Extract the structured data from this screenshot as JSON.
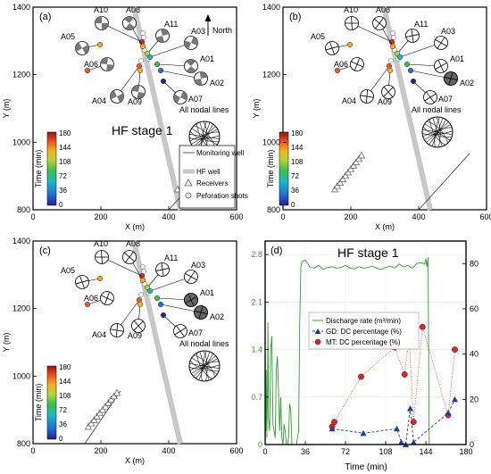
{
  "colors": {
    "hf_well": "#c8c8c8",
    "discharge": "#2ca02c",
    "gd": "#1f3f99",
    "mt": "#d62728",
    "axis": "#000000",
    "grid": "#e6e6e6"
  },
  "colorbar": {
    "label": "Time (min)",
    "ticks": [
      "180",
      "144",
      "108",
      "72",
      "36",
      "0"
    ]
  },
  "map_panels": [
    {
      "id": "a",
      "letter": "(a)",
      "xlabel": "X (m)",
      "ylabel": "Y (m)",
      "xticks": [
        "0",
        "200",
        "400",
        "600"
      ],
      "yticks": [
        "1400",
        "1200",
        "1000",
        "800"
      ],
      "north": "North",
      "stage_label": "HF stage 1",
      "nodal_label": "All nodal lines",
      "legend": [
        "Monitoring well",
        "HF well",
        "Receivers",
        "Peforation shots"
      ],
      "beachball_style": "fm",
      "beachball_labels": [
        "A10",
        "A08",
        "A11",
        "A03",
        "A05",
        "A06",
        "A01",
        "A02",
        "A07",
        "A04",
        "A09"
      ]
    },
    {
      "id": "b",
      "letter": "(b)",
      "xlabel": "X (m)",
      "ylabel": "Y (m)",
      "xticks": [
        "0",
        "200",
        "400",
        "600"
      ],
      "yticks": [
        "1400",
        "1200",
        "1000",
        "800"
      ],
      "nodal_label": "All nodal lines",
      "beachball_style": "gd",
      "beachball_labels": [
        "A10",
        "A08",
        "A11",
        "A03",
        "A05",
        "A06",
        "A01",
        "A02",
        "A07",
        "A04",
        "A09"
      ]
    },
    {
      "id": "c",
      "letter": "(c)",
      "xlabel": "X (m)",
      "ylabel": "Y (m)",
      "xticks": [
        "0",
        "200",
        "400",
        "600"
      ],
      "yticks": [
        "1400",
        "1200",
        "1000",
        "800"
      ],
      "nodal_label": "All nodal lines",
      "beachball_style": "mt",
      "beachball_labels": [
        "A10",
        "A08",
        "A11",
        "A03",
        "A05",
        "A06",
        "A01",
        "A02",
        "A07",
        "A04",
        "A09"
      ]
    }
  ],
  "chart_data": {
    "type": "line",
    "letter": "(d)",
    "title": "HF stage 1",
    "xlabel": "Time (min)",
    "xlim": [
      0,
      180
    ],
    "xticks": [
      "0",
      "36",
      "72",
      "108",
      "144",
      "180"
    ],
    "ylim_left": [
      0,
      3.0
    ],
    "yticks_left": [
      "0",
      "0.7",
      "1.4",
      "2.1",
      "2.8"
    ],
    "ylim_right": [
      0,
      90
    ],
    "yticks_right": [
      "0",
      "20",
      "40",
      "60",
      "80"
    ],
    "legend": [
      "Discharge rate (m³/min)",
      "GD: DC percentage (%)",
      "MT: DC percentage (%)"
    ],
    "series": [
      {
        "name": "Discharge rate (m³/min)",
        "axis": "left",
        "x": [
          0,
          0.5,
          1,
          1.5,
          2,
          2.5,
          3,
          4,
          5,
          6,
          7,
          8,
          9,
          10,
          11,
          12,
          13,
          14,
          15,
          16,
          17,
          18,
          19,
          20,
          21,
          22,
          23,
          24,
          25,
          26,
          27,
          28,
          29,
          30,
          31,
          32,
          33,
          36,
          40,
          44,
          48,
          52,
          56,
          60,
          64,
          68,
          72,
          76,
          80,
          84,
          88,
          92,
          96,
          100,
          104,
          108,
          112,
          116,
          120,
          124,
          128,
          132,
          136,
          140,
          143,
          144,
          145,
          146,
          147,
          148,
          149,
          150,
          160,
          180
        ],
        "y": [
          1.6,
          0.2,
          1.1,
          0.1,
          0.6,
          1.8,
          0.4,
          0.2,
          1.4,
          1.6,
          0.3,
          0.2,
          0.1,
          1.1,
          1.3,
          0.8,
          0.2,
          0.7,
          0.1,
          0.0,
          0.3,
          0.2,
          0.0,
          0.0,
          0.1,
          0.6,
          0.5,
          0.0,
          0.0,
          0.0,
          0.0,
          0.0,
          0.1,
          0.2,
          1.8,
          2.62,
          2.7,
          2.72,
          2.62,
          2.6,
          2.64,
          2.58,
          2.61,
          2.62,
          2.6,
          2.61,
          2.64,
          2.6,
          2.59,
          2.62,
          2.6,
          2.61,
          2.63,
          2.6,
          2.58,
          2.61,
          2.63,
          2.6,
          2.66,
          2.62,
          2.64,
          2.6,
          2.67,
          2.68,
          2.66,
          2.74,
          2.62,
          2.76,
          0.0,
          0.0,
          0.0,
          0.0,
          0.0,
          0.0
        ]
      },
      {
        "name": "GD: DC percentage (%)",
        "axis": "right",
        "x": [
          60,
          88,
          118,
          122,
          126,
          130,
          133,
          164,
          170
        ],
        "y": [
          7,
          5,
          7,
          1,
          0,
          16,
          1,
          14,
          20
        ]
      },
      {
        "name": "MT: DC percentage (%)",
        "axis": "right",
        "x": [
          60,
          62,
          86,
          116,
          125,
          129,
          133,
          141,
          164,
          170
        ],
        "y": [
          8,
          10,
          30,
          43,
          31,
          48,
          10,
          52,
          13,
          42
        ]
      }
    ]
  }
}
